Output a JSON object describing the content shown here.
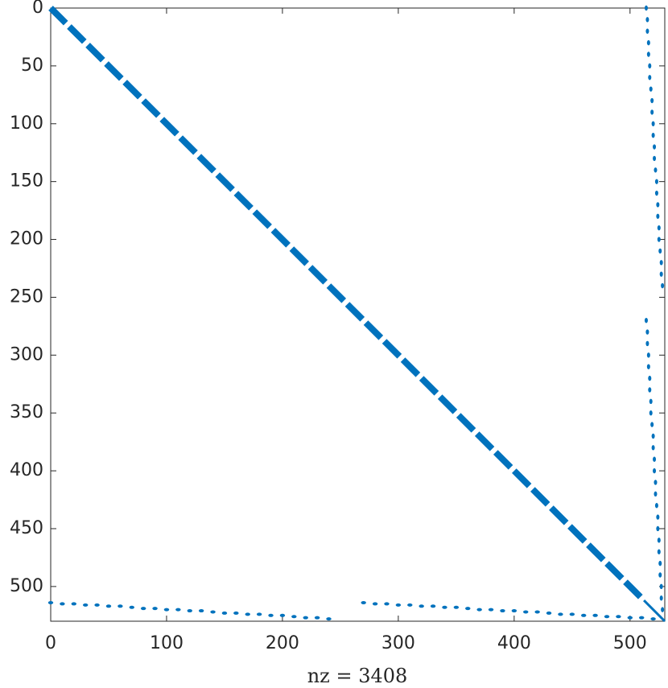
{
  "chart_data": {
    "type": "spy",
    "xlabel": "nz = 3408",
    "color": "#0072bd",
    "xlim": [
      0,
      530
    ],
    "ylim": [
      0,
      530
    ],
    "xticks": [
      0,
      100,
      200,
      300,
      400,
      500
    ],
    "yticks": [
      0,
      50,
      100,
      150,
      200,
      250,
      300,
      350,
      400,
      450,
      500
    ],
    "blocks": {
      "starts": [
        0,
        16,
        32,
        48,
        64,
        80,
        96,
        112,
        128,
        144,
        160,
        176,
        192,
        208,
        224,
        240,
        256,
        272,
        288,
        304,
        320,
        336,
        352,
        368,
        384,
        400,
        416,
        432,
        448,
        464,
        480,
        496,
        512
      ],
      "ends": [
        13,
        29,
        45,
        61,
        77,
        93,
        109,
        125,
        141,
        157,
        173,
        189,
        205,
        221,
        237,
        253,
        269,
        285,
        301,
        317,
        333,
        349,
        365,
        381,
        397,
        413,
        429,
        445,
        461,
        477,
        493,
        509,
        530
      ]
    },
    "points": {
      "x": [
        514,
        515,
        515,
        516,
        516,
        517,
        517,
        518,
        519,
        519,
        520,
        520,
        521,
        521,
        522,
        523,
        523,
        524,
        524,
        525,
        525,
        526,
        527,
        527,
        528,
        514,
        515,
        515,
        516,
        516,
        517,
        517,
        518,
        518,
        519,
        520,
        520,
        521,
        521,
        522,
        522,
        523,
        524,
        524,
        525,
        525,
        526,
        526,
        527,
        527,
        528,
        0,
        10,
        20,
        30,
        40,
        50,
        60,
        70,
        80,
        90,
        100,
        110,
        120,
        130,
        140,
        150,
        160,
        170,
        180,
        190,
        200,
        210,
        220,
        230,
        240,
        270,
        280,
        290,
        300,
        310,
        320,
        330,
        340,
        350,
        360,
        370,
        380,
        390,
        400,
        410,
        420,
        430,
        440,
        450,
        460,
        470,
        480,
        490,
        500,
        510,
        520
      ],
      "y": [
        0,
        10,
        20,
        30,
        40,
        50,
        60,
        70,
        80,
        90,
        100,
        110,
        120,
        130,
        140,
        150,
        160,
        170,
        180,
        190,
        200,
        210,
        220,
        230,
        240,
        270,
        280,
        290,
        300,
        310,
        320,
        330,
        340,
        350,
        360,
        370,
        380,
        390,
        400,
        410,
        420,
        430,
        440,
        450,
        460,
        470,
        480,
        490,
        500,
        510,
        520,
        514,
        515,
        515,
        516,
        516,
        517,
        517,
        518,
        519,
        519,
        520,
        520,
        521,
        521,
        522,
        523,
        523,
        524,
        524,
        525,
        525,
        526,
        527,
        527,
        528,
        514,
        515,
        515,
        516,
        516,
        517,
        517,
        518,
        518,
        519,
        520,
        520,
        521,
        521,
        522,
        522,
        523,
        524,
        524,
        525,
        525,
        526,
        526,
        527,
        527,
        528
      ]
    }
  }
}
